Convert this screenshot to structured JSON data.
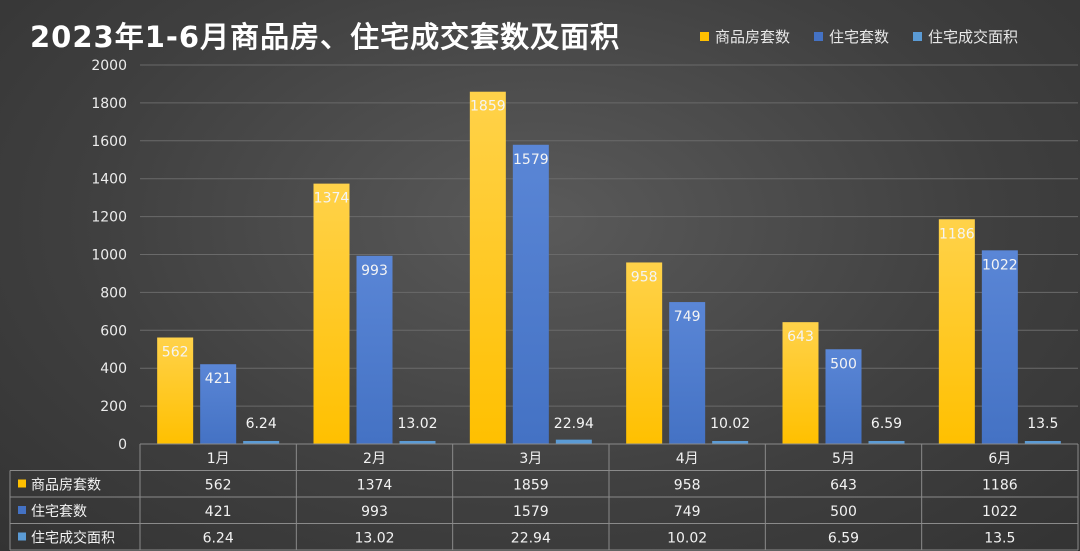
{
  "title": "2023年1-6月商品房、住宅成交套数及面积",
  "colors": {
    "series0": "#ffc000",
    "series1": "#4472c4",
    "series2": "#5b9bd5",
    "grid": "#6a6a6a",
    "table_line": "#8a8a8a"
  },
  "chart_data": {
    "type": "bar",
    "title": "2023年1-6月商品房、住宅成交套数及面积",
    "categories": [
      "1月",
      "2月",
      "3月",
      "4月",
      "5月",
      "6月"
    ],
    "series": [
      {
        "name": "商品房套数",
        "values": [
          562,
          1374,
          1859,
          958,
          643,
          1186
        ]
      },
      {
        "name": "住宅套数",
        "values": [
          421,
          993,
          1579,
          749,
          500,
          1022
        ]
      },
      {
        "name": "住宅成交面积",
        "values": [
          6.24,
          13.02,
          22.94,
          10.02,
          6.59,
          13.5
        ]
      }
    ],
    "value_labels": [
      [
        "562",
        "1374",
        "1859",
        "958",
        "643",
        "1186"
      ],
      [
        "421",
        "993",
        "1579",
        "749",
        "500",
        "1022"
      ],
      [
        "6.24",
        "13.02",
        "22.94",
        "10.02",
        "6.59",
        "13.5"
      ]
    ],
    "yticks": [
      "0",
      "200",
      "400",
      "600",
      "800",
      "1000",
      "1200",
      "1400",
      "1600",
      "1800",
      "2000"
    ],
    "ylim": [
      0,
      2000
    ],
    "xlabel": "",
    "ylabel": "",
    "grid": true,
    "legend_position": "top-right",
    "data_table": true
  }
}
